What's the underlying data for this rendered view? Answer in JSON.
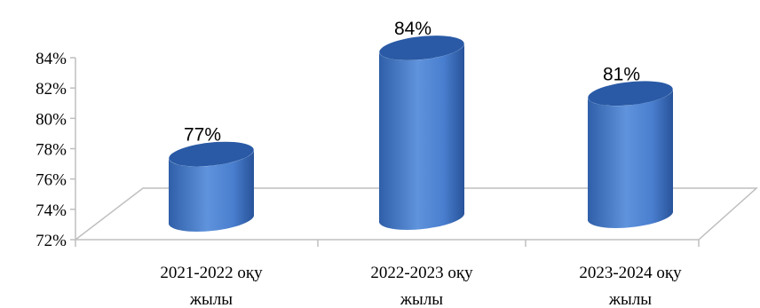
{
  "chart_data": {
    "type": "bar",
    "style": "3d-cylinder",
    "categories": [
      [
        "2021-2022 оқу",
        "жылы"
      ],
      [
        "2022-2023 оқу",
        "жылы"
      ],
      [
        "2023-2024 оқу",
        "жылы"
      ]
    ],
    "values": [
      77,
      84,
      81
    ],
    "data_labels": [
      "77%",
      "84%",
      "81%"
    ],
    "y_ticks": [
      "72%",
      "74%",
      "76%",
      "78%",
      "80%",
      "82%",
      "84%"
    ],
    "ylim": [
      72,
      84
    ],
    "title": "",
    "xlabel": "",
    "ylabel": "",
    "grid": false,
    "legend": "none",
    "bar_color": "#4a7fcf",
    "bar_top_color": "#2a5aa6"
  }
}
